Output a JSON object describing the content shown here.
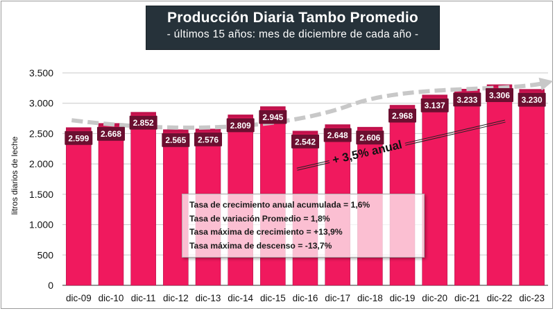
{
  "header": {
    "title": "Producción Diaria Tambo Promedio",
    "subtitle": "- últimos 15 años: mes de diciembre de cada año -"
  },
  "chart_data": {
    "type": "bar",
    "title": "Producción Diaria Tambo Promedio",
    "subtitle": "- últimos 15 años: mes de diciembre de cada año -",
    "xlabel": "",
    "ylabel": "litros diarios de leche",
    "ylim": [
      0,
      3500
    ],
    "yticks": [
      0,
      500,
      1000,
      1500,
      2000,
      2500,
      3000,
      3500
    ],
    "ytick_labels": [
      "0",
      "500",
      "1.000",
      "1.500",
      "2.000",
      "2.500",
      "3.000",
      "3.500"
    ],
    "grid": true,
    "categories": [
      "dic-09",
      "dic-10",
      "dic-11",
      "dic-12",
      "dic-13",
      "dic-14",
      "dic-15",
      "dic-16",
      "dic-17",
      "dic-18",
      "dic-19",
      "dic-20",
      "dic-21",
      "dic-22",
      "dic-23"
    ],
    "values": [
      2599,
      2668,
      2852,
      2565,
      2576,
      2809,
      2945,
      2542,
      2648,
      2606,
      2968,
      3137,
      3233,
      3306,
      3230
    ],
    "value_labels": [
      "2.599",
      "2.668",
      "2.852",
      "2.565",
      "2.576",
      "2.809",
      "2.945",
      "2.542",
      "2.648",
      "2.606",
      "2.968",
      "3.137",
      "3.233",
      "3.306",
      "3.230"
    ],
    "trend_annotation": "+ 3,5% anual",
    "trend": {
      "start_value": 2720,
      "end_value": 3340
    },
    "colors": {
      "bar": "#f0195e",
      "bar_top": "#c2124c",
      "label_bg": "#6b0f30",
      "label_text": "#ffffff",
      "trend": "#c8c8c8"
    }
  },
  "info_box": {
    "lines": [
      "Tasa de crecimiento anual acumulada = 1,6%",
      "Tasa de variación Promedio = 1,8%",
      "Tasa máxima de crecimiento = +13,9%",
      "Tasa máxima de descenso = -13,7%"
    ]
  }
}
